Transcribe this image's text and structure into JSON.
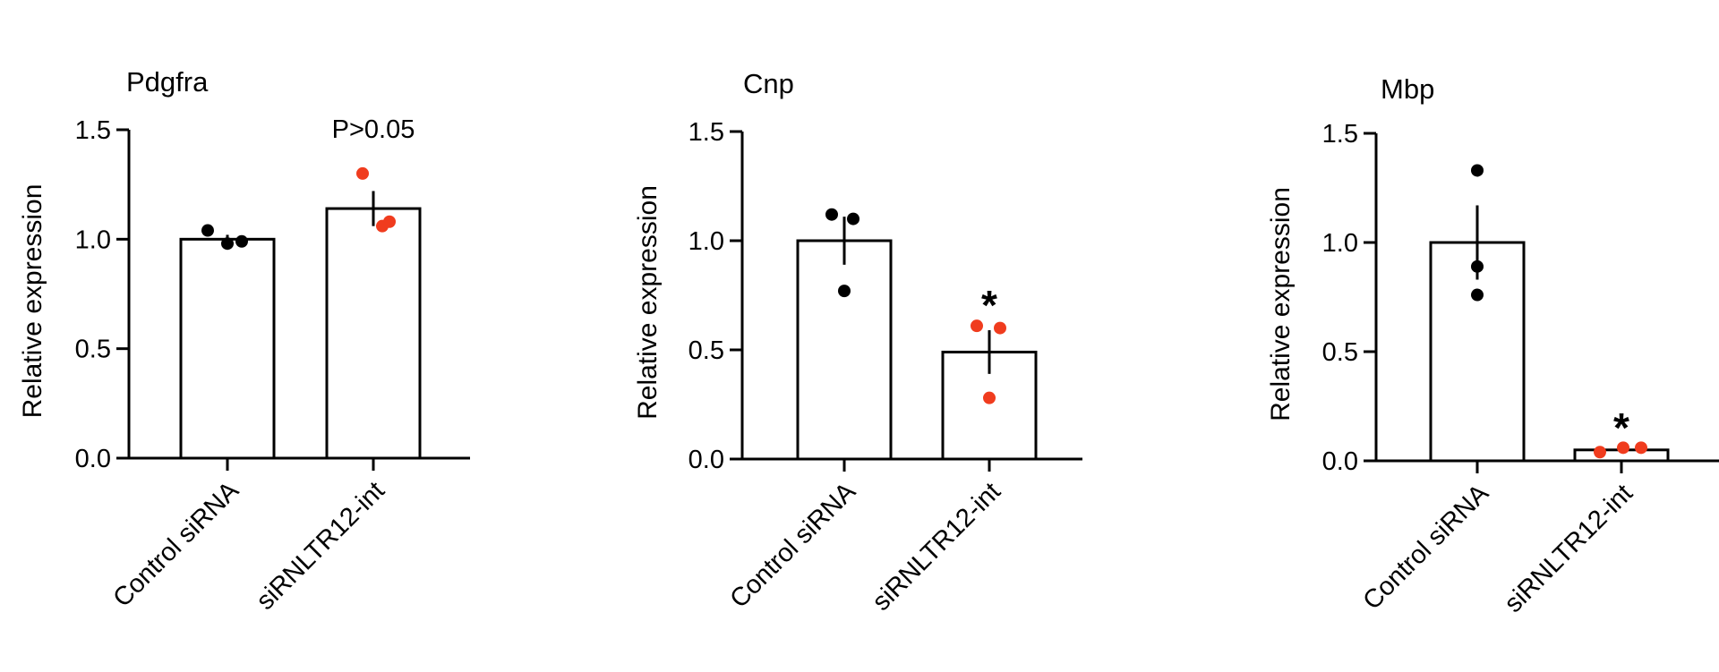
{
  "chart_data": [
    {
      "type": "bar",
      "title": "Pdgfra",
      "ylabel": "Relative expression",
      "ylim": [
        0,
        1.5
      ],
      "yticks": [
        "0.0",
        "0.5",
        "1.0",
        "1.5"
      ],
      "categories": [
        "Control siRNA",
        "siRNLTR12-int"
      ],
      "values": [
        1.0,
        1.14
      ],
      "errors": [
        0.02,
        0.08
      ],
      "points": [
        [
          1.04,
          0.98,
          0.99
        ],
        [
          1.3,
          1.06,
          1.08
        ]
      ],
      "point_colors": [
        "#000000",
        "#f03c1e"
      ],
      "annotation": "P>0.05",
      "annotation_category": 1
    },
    {
      "type": "bar",
      "title": "Cnp",
      "ylabel": "Relative expression",
      "ylim": [
        0,
        1.5
      ],
      "yticks": [
        "0.0",
        "0.5",
        "1.0",
        "1.5"
      ],
      "categories": [
        "Control siRNA",
        "siRNLTR12-int"
      ],
      "values": [
        1.0,
        0.49
      ],
      "errors": [
        0.11,
        0.1
      ],
      "points": [
        [
          1.12,
          1.1,
          0.77
        ],
        [
          0.61,
          0.6,
          0.28
        ]
      ],
      "point_colors": [
        "#000000",
        "#f03c1e"
      ],
      "annotation": "*",
      "annotation_category": 1
    },
    {
      "type": "bar",
      "title": "Mbp",
      "ylabel": "Relative expression",
      "ylim": [
        0,
        1.5
      ],
      "yticks": [
        "0.0",
        "0.5",
        "1.0",
        "1.5"
      ],
      "categories": [
        "Control siRNA",
        "siRNLTR12-int"
      ],
      "values": [
        1.0,
        0.05
      ],
      "errors": [
        0.17,
        0.01
      ],
      "points": [
        [
          1.33,
          0.89,
          0.76
        ],
        [
          0.04,
          0.06,
          0.06
        ]
      ],
      "point_colors": [
        "#000000",
        "#f03c1e"
      ],
      "annotation": "*",
      "annotation_category": 1
    }
  ]
}
